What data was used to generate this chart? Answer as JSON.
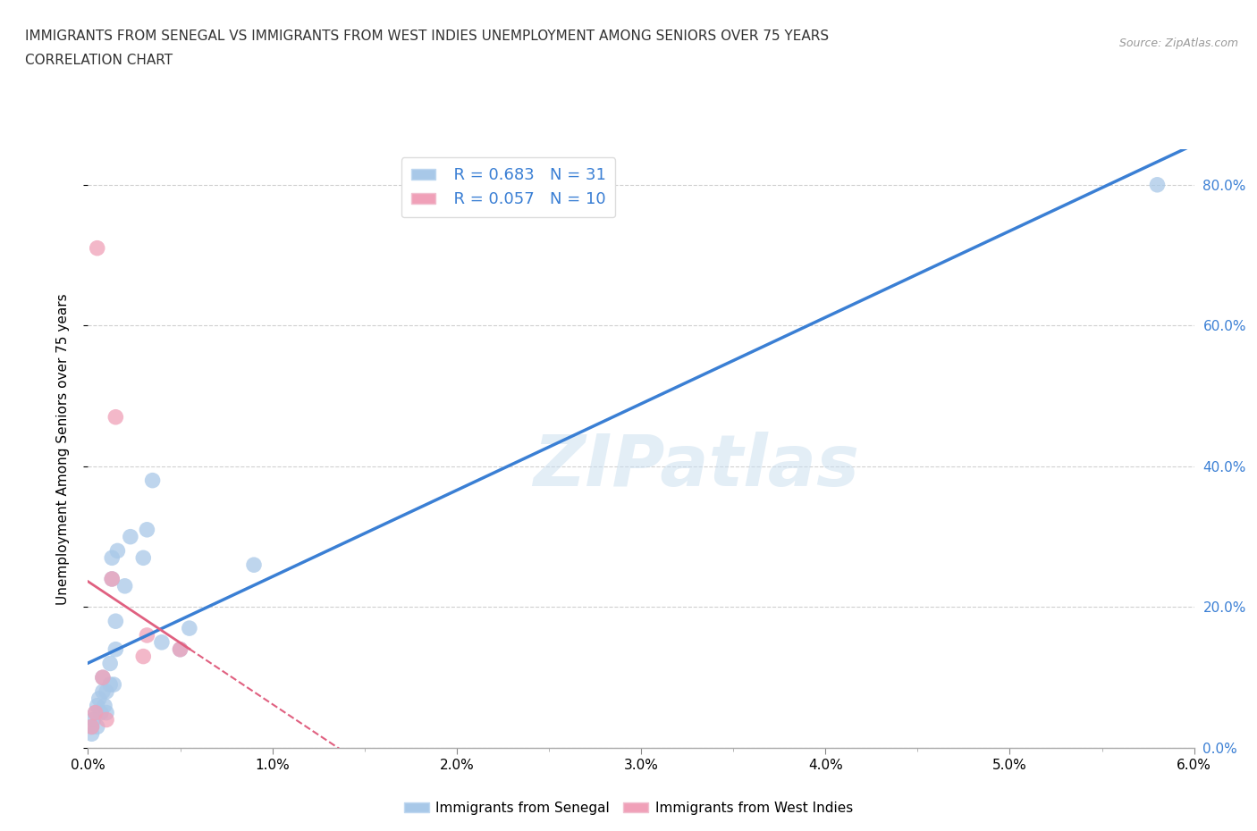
{
  "title_line1": "IMMIGRANTS FROM SENEGAL VS IMMIGRANTS FROM WEST INDIES UNEMPLOYMENT AMONG SENIORS OVER 75 YEARS",
  "title_line2": "CORRELATION CHART",
  "source": "Source: ZipAtlas.com",
  "ylabel_label": "Unemployment Among Seniors over 75 years",
  "xlim": [
    0.0,
    0.06
  ],
  "ylim": [
    0.0,
    0.85
  ],
  "xticks_major": [
    0.0,
    0.01,
    0.02,
    0.03,
    0.04,
    0.05,
    0.06
  ],
  "xticks_minor": [
    0.005,
    0.015,
    0.025,
    0.035,
    0.045,
    0.055
  ],
  "yticks": [
    0.0,
    0.2,
    0.4,
    0.6,
    0.8
  ],
  "watermark": "ZIPatlas",
  "legend_r1": "R = 0.683   N = 31",
  "legend_r2": "R = 0.057   N = 10",
  "color_senegal": "#a8c8e8",
  "color_west_indies": "#f0a0b8",
  "color_senegal_line": "#3a7fd4",
  "color_west_indies_line": "#e06080",
  "color_right_axis": "#3a7fd4",
  "senegal_x": [
    0.0002,
    0.0002,
    0.0003,
    0.0004,
    0.0005,
    0.0005,
    0.0006,
    0.0007,
    0.0008,
    0.0008,
    0.0009,
    0.001,
    0.001,
    0.0012,
    0.0012,
    0.0013,
    0.0013,
    0.0014,
    0.0015,
    0.0015,
    0.0016,
    0.002,
    0.0023,
    0.003,
    0.0032,
    0.0035,
    0.004,
    0.005,
    0.0055,
    0.009,
    0.058
  ],
  "senegal_y": [
    0.02,
    0.03,
    0.04,
    0.05,
    0.03,
    0.06,
    0.07,
    0.05,
    0.08,
    0.1,
    0.06,
    0.08,
    0.05,
    0.09,
    0.12,
    0.24,
    0.27,
    0.09,
    0.14,
    0.18,
    0.28,
    0.23,
    0.3,
    0.27,
    0.31,
    0.38,
    0.15,
    0.14,
    0.17,
    0.26,
    0.8
  ],
  "west_indies_x": [
    0.0002,
    0.0004,
    0.0005,
    0.0008,
    0.001,
    0.0013,
    0.0015,
    0.003,
    0.0032,
    0.005
  ],
  "west_indies_y": [
    0.03,
    0.05,
    0.71,
    0.1,
    0.04,
    0.24,
    0.47,
    0.13,
    0.16,
    0.14
  ],
  "background_color": "#ffffff",
  "grid_color": "#d0d0d0",
  "right_yticks": [
    0.0,
    0.2,
    0.4,
    0.6,
    0.8
  ],
  "right_yticklabels": [
    "0.0%",
    "20.0%",
    "40.0%",
    "60.0%",
    "80.0%"
  ],
  "xticklabels": [
    "0.0%",
    "1.0%",
    "2.0%",
    "3.0%",
    "4.0%",
    "5.0%",
    "6.0%"
  ]
}
